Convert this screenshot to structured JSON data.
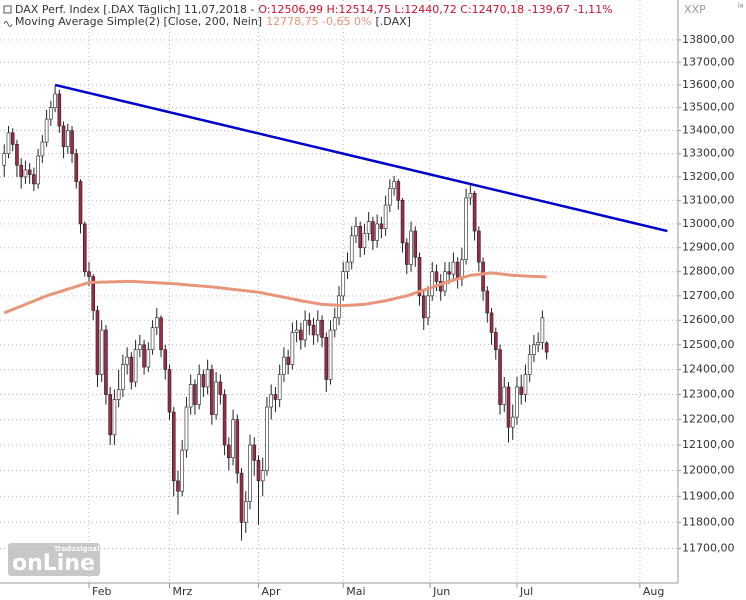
{
  "chart_data": {
    "type": "candlestick",
    "header": {
      "symbol": "DAX Perf. Index [.DAX  Täglich] 11,07,2018 -",
      "ohlc": "O:12506,99 H:12514,75 L:12440,72 C:12470,18 -139,67 -1,11%",
      "indicator": "Moving Average Simple(2) [Close, 200, Nein]",
      "indicator_values": "12778,75 -0,65 0%",
      "indicator_symbol": "[.DAX]",
      "corner": "XXP",
      "corner_small": "la"
    },
    "logo": {
      "brand": "Tradesignal",
      "name": "onLine"
    },
    "xlim": [
      -1,
      159
    ],
    "xticks": [
      {
        "value": 20,
        "label": "Feb"
      },
      {
        "value": 39,
        "label": "Mrz"
      },
      {
        "value": 60,
        "label": "Apr"
      },
      {
        "value": 80,
        "label": "Mai"
      },
      {
        "value": 100.5,
        "label": "Jun"
      },
      {
        "value": 121,
        "label": "Jul"
      },
      {
        "value": 150,
        "label": "Aug"
      }
    ],
    "ylim": [
      11570,
      13980
    ],
    "log_scale": true,
    "grid": true,
    "yticks": [
      {
        "value": 13800,
        "label": "13800,00"
      },
      {
        "value": 13700,
        "label": "13700,00"
      },
      {
        "value": 13600,
        "label": "13600,00"
      },
      {
        "value": 13500,
        "label": "13500,00"
      },
      {
        "value": 13400,
        "label": "13400,00"
      },
      {
        "value": 13300,
        "label": "13300,00"
      },
      {
        "value": 13200,
        "label": "13200,00"
      },
      {
        "value": 13100,
        "label": "13100,00"
      },
      {
        "value": 13000,
        "label": "13000,00"
      },
      {
        "value": 12900,
        "label": "12900,00"
      },
      {
        "value": 12800,
        "label": "12800,00"
      },
      {
        "value": 12700,
        "label": "12700,00"
      },
      {
        "value": 12600,
        "label": "12600,00"
      },
      {
        "value": 12500,
        "label": "12500,00"
      },
      {
        "value": 12400,
        "label": "12400,00"
      },
      {
        "value": 12300,
        "label": "12300,00"
      },
      {
        "value": 12200,
        "label": "12200,00"
      },
      {
        "value": 12100,
        "label": "12100,00"
      },
      {
        "value": 12000,
        "label": "12000,00"
      },
      {
        "value": 11900,
        "label": "11900,00"
      },
      {
        "value": 11800,
        "label": "11800,00"
      },
      {
        "value": 11700,
        "label": "11700,00"
      }
    ],
    "up_color": "#ffffff",
    "down_color": "#9e2a47",
    "open": [
      13250,
      13300,
      13390,
      13340,
      13250,
      13200,
      13230,
      13210,
      13170,
      13290,
      13350,
      13450,
      13500,
      13560,
      13420,
      13330,
      13400,
      13300,
      13180,
      13000,
      12800,
      12780,
      12640,
      12380,
      12560,
      12300,
      12140,
      12280,
      12320,
      12420,
      12450,
      12350,
      12480,
      12500,
      12410,
      12480,
      12570,
      12610,
      12480,
      12400,
      12230,
      11960,
      11920,
      12080,
      12250,
      12340,
      12260,
      12380,
      12330,
      12400,
      12220,
      12350,
      12300,
      12100,
      12050,
      12200,
      11990,
      11800,
      11880,
      12100,
      12040,
      11960,
      12000,
      12250,
      12300,
      12280,
      12380,
      12450,
      12420,
      12550,
      12560,
      12520,
      12600,
      12580,
      12540,
      12600,
      12530,
      12360,
      12560,
      12610,
      12700,
      12800,
      12840,
      12950,
      12990,
      12900,
      12960,
      13010,
      12930,
      13000,
      12980,
      13080,
      13150,
      13180,
      13100,
      12920,
      12830,
      12970,
      12860,
      12700,
      12610,
      12700,
      12800,
      12760,
      12720,
      12800,
      12790,
      12840,
      12770,
      12850,
      13110,
      13130,
      12970,
      12840,
      12720,
      12630,
      12550,
      12480,
      12260,
      12330,
      12170,
      12210,
      12330,
      12300,
      12380,
      12460,
      12500,
      12510,
      12506.99
    ],
    "high": [
      13340,
      13420,
      13410,
      13360,
      13280,
      13270,
      13260,
      13240,
      13320,
      13380,
      13490,
      13530,
      13597,
      13580,
      13440,
      13430,
      13420,
      13320,
      13190,
      13010,
      12840,
      12790,
      12660,
      12600,
      12580,
      12330,
      12320,
      12400,
      12460,
      12490,
      12470,
      12520,
      12540,
      12520,
      12510,
      12600,
      12650,
      12620,
      12500,
      12420,
      12250,
      12000,
      12120,
      12290,
      12380,
      12360,
      12420,
      12400,
      12440,
      12420,
      12390,
      12380,
      12320,
      12130,
      12240,
      12220,
      12010,
      11920,
      12140,
      12130,
      12060,
      12050,
      12290,
      12340,
      12330,
      12420,
      12490,
      12480,
      12590,
      12600,
      12590,
      12640,
      12630,
      12610,
      12640,
      12620,
      12550,
      12600,
      12650,
      12740,
      12840,
      12880,
      12990,
      13030,
      13010,
      13000,
      13050,
      13030,
      13040,
      13030,
      13120,
      13190,
      13204,
      13190,
      13110,
      12940,
      13010,
      12990,
      12880,
      12720,
      12740,
      12840,
      12830,
      12790,
      12840,
      12840,
      12880,
      12860,
      12900,
      13150,
      13170,
      13140,
      12990,
      12860,
      12740,
      12650,
      12570,
      12500,
      12370,
      12350,
      12260,
      12370,
      12380,
      12420,
      12500,
      12540,
      12550,
      12640,
      12514.75
    ],
    "low": [
      13200,
      13280,
      13310,
      13200,
      13150,
      13170,
      13170,
      13140,
      13150,
      13260,
      13330,
      13420,
      13480,
      13390,
      13280,
      13300,
      13260,
      13150,
      12960,
      12780,
      12740,
      12600,
      12330,
      12350,
      12260,
      12100,
      12100,
      12250,
      12290,
      12380,
      12320,
      12330,
      12450,
      12380,
      12390,
      12460,
      12540,
      12450,
      12360,
      12200,
      11900,
      11830,
      11900,
      12050,
      12220,
      12220,
      12240,
      12290,
      12300,
      12180,
      12200,
      12260,
      12060,
      12000,
      12020,
      11950,
      11730,
      11760,
      11850,
      11980,
      11790,
      11900,
      11980,
      12200,
      12230,
      12250,
      12350,
      12380,
      12400,
      12510,
      12480,
      12490,
      12540,
      12500,
      12510,
      12490,
      12310,
      12340,
      12530,
      12580,
      12680,
      12770,
      12810,
      12920,
      12860,
      12870,
      12930,
      12890,
      12900,
      12940,
      12950,
      13050,
      13120,
      13060,
      12880,
      12790,
      12800,
      12820,
      12660,
      12560,
      12580,
      12680,
      12720,
      12680,
      12700,
      12750,
      12760,
      12730,
      12740,
      12830,
      13080,
      12930,
      12800,
      12680,
      12590,
      12500,
      12440,
      12220,
      12230,
      12110,
      12120,
      12180,
      12260,
      12270,
      12350,
      12430,
      12470,
      12480,
      12440.72
    ],
    "close": [
      13300,
      13390,
      13340,
      13250,
      13200,
      13230,
      13210,
      13170,
      13290,
      13350,
      13450,
      13500,
      13560,
      13420,
      13330,
      13400,
      13300,
      13180,
      13000,
      12800,
      12780,
      12640,
      12380,
      12560,
      12300,
      12140,
      12280,
      12320,
      12420,
      12450,
      12350,
      12480,
      12500,
      12410,
      12480,
      12570,
      12610,
      12480,
      12400,
      12230,
      11960,
      11920,
      12080,
      12250,
      12340,
      12260,
      12380,
      12330,
      12400,
      12220,
      12350,
      12300,
      12100,
      12050,
      12200,
      11990,
      11800,
      11880,
      12100,
      12040,
      11960,
      12000,
      12250,
      12300,
      12280,
      12380,
      12450,
      12420,
      12550,
      12560,
      12520,
      12600,
      12580,
      12540,
      12600,
      12530,
      12360,
      12560,
      12610,
      12700,
      12800,
      12840,
      12950,
      12990,
      12900,
      12960,
      13010,
      12930,
      13000,
      12980,
      13080,
      13150,
      13180,
      13100,
      12920,
      12830,
      12970,
      12860,
      12700,
      12610,
      12700,
      12800,
      12760,
      12720,
      12800,
      12790,
      12840,
      12770,
      12850,
      13110,
      13130,
      12970,
      12840,
      12720,
      12630,
      12550,
      12480,
      12260,
      12330,
      12170,
      12210,
      12330,
      12300,
      12380,
      12460,
      12500,
      12510,
      12610,
      12470.18
    ],
    "ma": {
      "color": "#e8967a",
      "values": [
        12630,
        12637,
        12644,
        12651,
        12658,
        12665,
        12672,
        12679,
        12686,
        12693,
        12700,
        12706,
        12711,
        12717,
        12722,
        12728,
        12733,
        12739,
        12744,
        12750,
        12755,
        12756,
        12756,
        12757,
        12757,
        12758,
        12758,
        12759,
        12759,
        12760,
        12760,
        12759,
        12758,
        12757,
        12756,
        12755,
        12754,
        12753,
        12752,
        12751,
        12750,
        12749,
        12747,
        12746,
        12744,
        12743,
        12741,
        12740,
        12738,
        12737,
        12735,
        12733,
        12731,
        12729,
        12727,
        12725,
        12723,
        12721,
        12719,
        12717,
        12715,
        12712,
        12708,
        12705,
        12701,
        12698,
        12694,
        12691,
        12687,
        12684,
        12680,
        12677,
        12674,
        12671,
        12668,
        12665,
        12664,
        12663,
        12662,
        12661,
        12660,
        12661,
        12662,
        12663,
        12664,
        12665,
        12668,
        12671,
        12674,
        12677,
        12680,
        12684,
        12688,
        12692,
        12696,
        12700,
        12706,
        12712,
        12718,
        12724,
        12730,
        12736,
        12742,
        12748,
        12754,
        12760,
        12765,
        12770,
        12775,
        12780,
        12785,
        12787,
        12789,
        12791,
        12793,
        12795,
        12793,
        12791,
        12789,
        12787,
        12785,
        12784,
        12783,
        12782,
        12781,
        12780,
        12780,
        12779,
        12778.75
      ]
    },
    "trendline": {
      "color": "#0000cc",
      "x": [
        12,
        156.5
      ],
      "values": [
        13600,
        12970
      ]
    }
  }
}
